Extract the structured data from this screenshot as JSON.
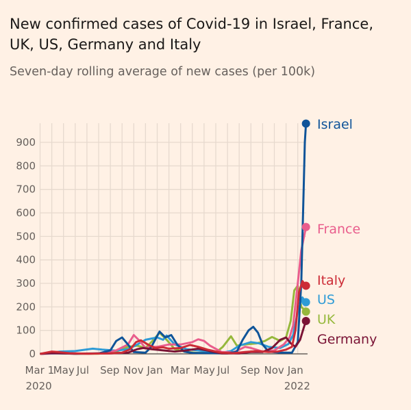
{
  "chart_data": {
    "type": "line",
    "title": "New confirmed cases of Covid-19 in Israel, France, UK, US, Germany and Italy",
    "subtitle": "Seven-day rolling average of new cases (per 100k)",
    "xlabel": "",
    "ylabel": "",
    "x_unit": "months since 1 Mar 2020",
    "xlim": [
      0,
      22.7
    ],
    "ylim": [
      0,
      1000
    ],
    "yticks": [
      0,
      100,
      200,
      300,
      400,
      500,
      600,
      700,
      800,
      900
    ],
    "xticks": [
      {
        "t": 0,
        "label": "Mar 1"
      },
      {
        "t": 2,
        "label": "May"
      },
      {
        "t": 4,
        "label": "Jul"
      },
      {
        "t": 6,
        "label": "Sep"
      },
      {
        "t": 8,
        "label": "Nov"
      },
      {
        "t": 10,
        "label": "Jan"
      },
      {
        "t": 12,
        "label": "Mar"
      },
      {
        "t": 14,
        "label": "May"
      },
      {
        "t": 16,
        "label": "Jul"
      },
      {
        "t": 18,
        "label": "Sep"
      },
      {
        "t": 20,
        "label": "Nov"
      },
      {
        "t": 22,
        "label": "Jan"
      }
    ],
    "year_labels": [
      {
        "t": 0,
        "label": "2020"
      },
      {
        "t": 22,
        "label": "2022"
      }
    ],
    "grid": true,
    "series": [
      {
        "name": "UK",
        "color": "#96b83c",
        "end": 180,
        "points": [
          [
            0,
            0
          ],
          [
            1,
            5
          ],
          [
            1.5,
            7
          ],
          [
            2,
            4
          ],
          [
            3,
            1
          ],
          [
            5,
            1
          ],
          [
            6.5,
            10
          ],
          [
            7.5,
            30
          ],
          [
            8.3,
            35
          ],
          [
            9,
            25
          ],
          [
            9.5,
            50
          ],
          [
            10.2,
            90
          ],
          [
            10.8,
            60
          ],
          [
            11.5,
            20
          ],
          [
            12.5,
            8
          ],
          [
            13.5,
            4
          ],
          [
            15,
            5
          ],
          [
            15.6,
            30
          ],
          [
            16.3,
            75
          ],
          [
            16.8,
            35
          ],
          [
            17.5,
            40
          ],
          [
            18.5,
            45
          ],
          [
            19.2,
            55
          ],
          [
            19.8,
            72
          ],
          [
            20.5,
            55
          ],
          [
            21,
            70
          ],
          [
            21.4,
            140
          ],
          [
            21.7,
            270
          ],
          [
            22,
            290
          ],
          [
            22.3,
            200
          ],
          [
            22.7,
            180
          ]
        ]
      },
      {
        "name": "US",
        "color": "#2e9bd6",
        "end": 220,
        "points": [
          [
            0,
            0
          ],
          [
            1,
            5
          ],
          [
            1.7,
            10
          ],
          [
            3,
            12
          ],
          [
            4.5,
            22
          ],
          [
            5.3,
            18
          ],
          [
            6.5,
            14
          ],
          [
            7.5,
            20
          ],
          [
            8.3,
            40
          ],
          [
            9,
            60
          ],
          [
            10,
            70
          ],
          [
            10.5,
            60
          ],
          [
            10.8,
            78
          ],
          [
            11.5,
            40
          ],
          [
            12.5,
            20
          ],
          [
            14,
            12
          ],
          [
            15.5,
            5
          ],
          [
            16.3,
            12
          ],
          [
            17,
            35
          ],
          [
            18,
            50
          ],
          [
            18.7,
            45
          ],
          [
            19.5,
            30
          ],
          [
            20.5,
            25
          ],
          [
            21.2,
            42
          ],
          [
            21.6,
            80
          ],
          [
            22,
            180
          ],
          [
            22.4,
            240
          ],
          [
            22.7,
            220
          ]
        ]
      },
      {
        "name": "France",
        "color": "#e95d8c",
        "end": 540,
        "points": [
          [
            0,
            0
          ],
          [
            2,
            3
          ],
          [
            4,
            1
          ],
          [
            5.5,
            3
          ],
          [
            6.5,
            15
          ],
          [
            7.5,
            40
          ],
          [
            8,
            80
          ],
          [
            8.5,
            55
          ],
          [
            9,
            25
          ],
          [
            9.5,
            30
          ],
          [
            10,
            30
          ],
          [
            11,
            40
          ],
          [
            12,
            40
          ],
          [
            13,
            50
          ],
          [
            13.5,
            62
          ],
          [
            14,
            55
          ],
          [
            14.5,
            35
          ],
          [
            15.5,
            8
          ],
          [
            16.5,
            6
          ],
          [
            17.5,
            30
          ],
          [
            18,
            25
          ],
          [
            19,
            10
          ],
          [
            20,
            15
          ],
          [
            20.8,
            40
          ],
          [
            21.3,
            70
          ],
          [
            21.6,
            120
          ],
          [
            22,
            300
          ],
          [
            22.3,
            440
          ],
          [
            22.7,
            540
          ]
        ]
      },
      {
        "name": "Israel",
        "color": "#0f5499",
        "end": 980,
        "points": [
          [
            0,
            0
          ],
          [
            1,
            3
          ],
          [
            3,
            1
          ],
          [
            5,
            2
          ],
          [
            6,
            15
          ],
          [
            6.5,
            55
          ],
          [
            7,
            70
          ],
          [
            7.5,
            40
          ],
          [
            8,
            8
          ],
          [
            9,
            5
          ],
          [
            9.5,
            30
          ],
          [
            10.2,
            95
          ],
          [
            10.7,
            70
          ],
          [
            11.2,
            80
          ],
          [
            11.7,
            40
          ],
          [
            12.3,
            10
          ],
          [
            13,
            4
          ],
          [
            16,
            2
          ],
          [
            16.8,
            10
          ],
          [
            17.3,
            60
          ],
          [
            17.8,
            100
          ],
          [
            18.2,
            115
          ],
          [
            18.6,
            90
          ],
          [
            19,
            40
          ],
          [
            19.5,
            10
          ],
          [
            20.5,
            5
          ],
          [
            21.5,
            5
          ],
          [
            22,
            50
          ],
          [
            22.3,
            300
          ],
          [
            22.5,
            700
          ],
          [
            22.6,
            900
          ],
          [
            22.7,
            980
          ]
        ]
      },
      {
        "name": "Germany",
        "color": "#7a1335",
        "end": 140,
        "points": [
          [
            0,
            0
          ],
          [
            1,
            4
          ],
          [
            2,
            2
          ],
          [
            3,
            1
          ],
          [
            6,
            2
          ],
          [
            7.5,
            5
          ],
          [
            8.3,
            20
          ],
          [
            8.8,
            25
          ],
          [
            9.5,
            20
          ],
          [
            10.5,
            15
          ],
          [
            11.5,
            10
          ],
          [
            12.5,
            15
          ],
          [
            13.5,
            22
          ],
          [
            14.5,
            12
          ],
          [
            15.5,
            2
          ],
          [
            17,
            2
          ],
          [
            18,
            8
          ],
          [
            19,
            8
          ],
          [
            19.8,
            25
          ],
          [
            20.5,
            60
          ],
          [
            21,
            70
          ],
          [
            21.4,
            45
          ],
          [
            21.8,
            30
          ],
          [
            22.2,
            60
          ],
          [
            22.5,
            110
          ],
          [
            22.7,
            140
          ]
        ]
      },
      {
        "name": "Italy",
        "color": "#cc2b36",
        "end": 290,
        "points": [
          [
            0,
            0
          ],
          [
            0.5,
            5
          ],
          [
            1,
            10
          ],
          [
            1.5,
            8
          ],
          [
            2.5,
            3
          ],
          [
            4,
            1
          ],
          [
            6,
            2
          ],
          [
            7,
            5
          ],
          [
            7.7,
            20
          ],
          [
            8.2,
            50
          ],
          [
            8.6,
            58
          ],
          [
            9.2,
            40
          ],
          [
            9.8,
            25
          ],
          [
            10.5,
            28
          ],
          [
            11,
            22
          ],
          [
            12,
            25
          ],
          [
            12.8,
            38
          ],
          [
            13.5,
            30
          ],
          [
            14.3,
            18
          ],
          [
            15.5,
            5
          ],
          [
            16.5,
            3
          ],
          [
            17.5,
            8
          ],
          [
            18.5,
            12
          ],
          [
            19.5,
            8
          ],
          [
            20.3,
            10
          ],
          [
            21,
            18
          ],
          [
            21.5,
            30
          ],
          [
            21.8,
            100
          ],
          [
            22.1,
            260
          ],
          [
            22.4,
            310
          ],
          [
            22.7,
            290
          ]
        ]
      }
    ]
  }
}
